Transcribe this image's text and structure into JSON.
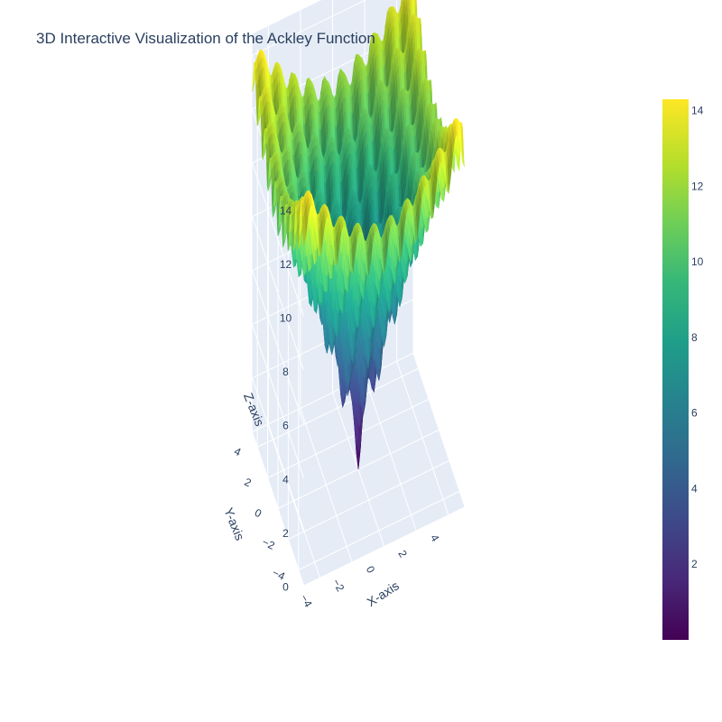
{
  "chart_data": {
    "type": "surface",
    "title": "3D Interactive Visualization of the Ackley Function",
    "function": "ackley",
    "colorscale": "Viridis",
    "x": {
      "label": "X-axis",
      "range": [
        -5,
        5
      ],
      "ticks": [
        -4,
        -2,
        0,
        2,
        4
      ],
      "tick_labels": [
        "−4",
        "−2",
        "0",
        "2",
        "4"
      ]
    },
    "y": {
      "label": "Y-axis",
      "range": [
        -5,
        5
      ],
      "ticks": [
        -4,
        -2,
        0,
        2,
        4
      ],
      "tick_labels": [
        "−4",
        "−2",
        "0",
        "2",
        "4"
      ]
    },
    "z": {
      "label": "Z-axis",
      "range": [
        0,
        14.5
      ],
      "ticks": [
        0,
        2,
        4,
        6,
        8,
        10,
        12,
        14
      ],
      "tick_labels": [
        "0",
        "2",
        "4",
        "6",
        "8",
        "10",
        "12",
        "14"
      ]
    },
    "colorbar": {
      "range": [
        0,
        14.3
      ],
      "ticks": [
        2,
        4,
        6,
        8,
        10,
        12,
        14
      ],
      "tick_labels": [
        "2",
        "4",
        "6",
        "8",
        "10",
        "12",
        "14"
      ]
    },
    "grid": true,
    "background_color": "#e5ecf6"
  }
}
